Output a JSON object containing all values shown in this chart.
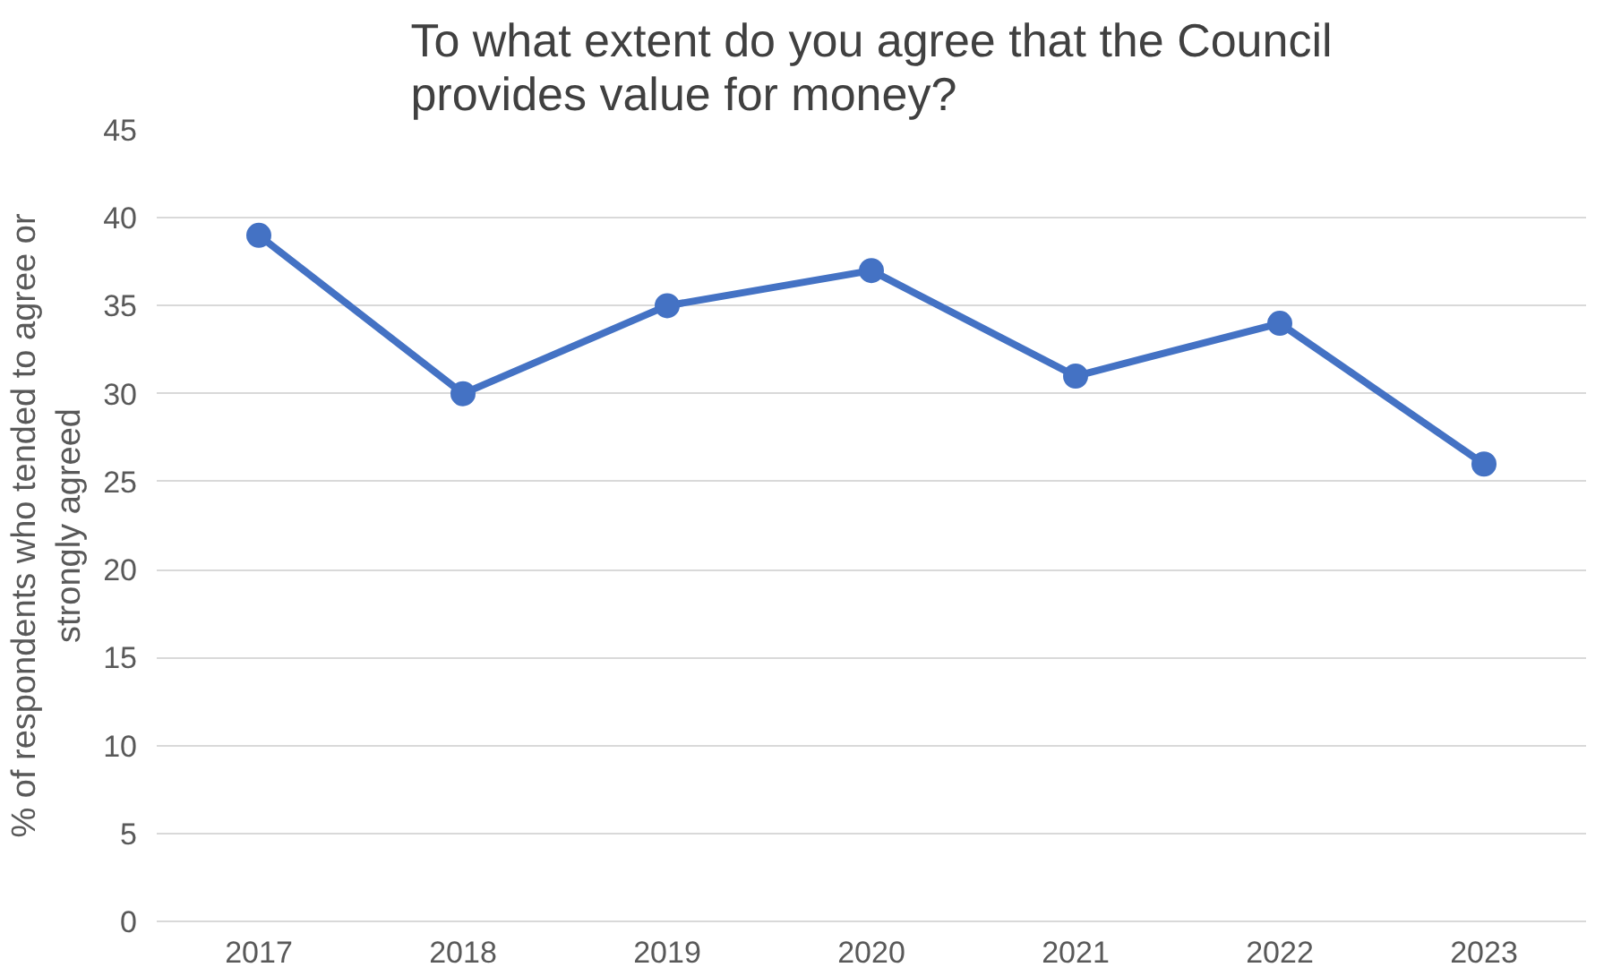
{
  "chart_data": {
    "type": "line",
    "title": "To what extent do you agree that the Council provides value for money?",
    "ylabel": "% of respondents who tended to agree or strongly agreed",
    "categories": [
      "2017",
      "2018",
      "2019",
      "2020",
      "2021",
      "2022",
      "2023"
    ],
    "series": [
      {
        "color": "#4472c4",
        "values": [
          39,
          30,
          35,
          37,
          31,
          34,
          26
        ]
      }
    ],
    "ylim": [
      0,
      45
    ],
    "yticks": [
      0,
      5,
      10,
      15,
      20,
      25,
      30,
      35,
      40,
      45
    ],
    "grid": "y",
    "marker": "circle",
    "line_style": "solid"
  }
}
